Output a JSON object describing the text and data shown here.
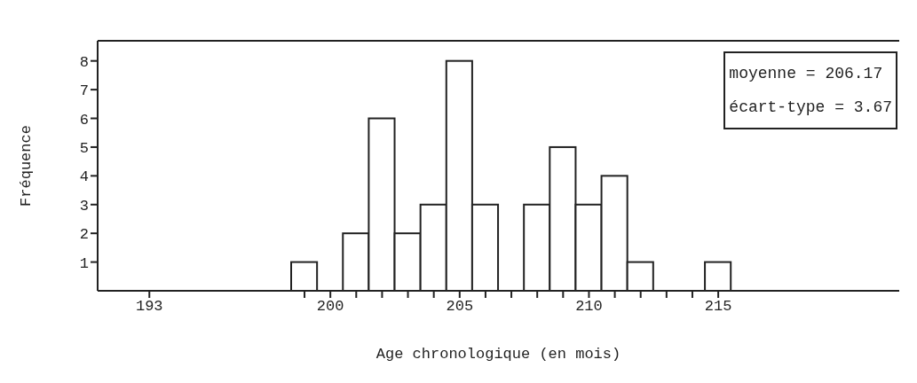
{
  "chart_data": {
    "type": "histogram",
    "xlabel": "Age chronologique (en mois)",
    "ylabel": "Fréquence",
    "bins": [
      198.5,
      199.5,
      200.5,
      201.5,
      202.5,
      203.5,
      204.5,
      205.5,
      206.5,
      207.5,
      208.5,
      209.5,
      210.5,
      211.5,
      212.5,
      213.5,
      214.5,
      215.5
    ],
    "values": [
      1,
      0,
      2,
      6,
      2,
      3,
      8,
      3,
      0,
      3,
      5,
      3,
      4,
      1,
      0,
      0,
      1
    ],
    "color": "#ffffff",
    "xlim": [
      191,
      222
    ],
    "xticks": [
      193,
      {
        "value": 199,
        "label": null
      },
      200,
      {
        "value": 201,
        "label": null
      },
      {
        "value": 202,
        "label": null
      },
      {
        "value": 203,
        "label": null
      },
      {
        "value": 204,
        "label": null
      },
      205,
      {
        "value": 206,
        "label": null
      },
      {
        "value": 207,
        "label": null
      },
      {
        "value": 208,
        "label": null
      },
      {
        "value": 209,
        "label": null
      },
      210,
      {
        "value": 211,
        "label": null
      },
      {
        "value": 212,
        "label": null
      },
      {
        "value": 213,
        "label": null
      },
      {
        "value": 214,
        "label": null
      },
      215
    ],
    "ylim": [
      0,
      8.7
    ],
    "yticks": [
      1,
      2,
      3,
      4,
      5,
      6,
      7,
      8
    ],
    "annotations": [
      "moyenne = 206.17",
      "écart-type = 3.67"
    ]
  }
}
